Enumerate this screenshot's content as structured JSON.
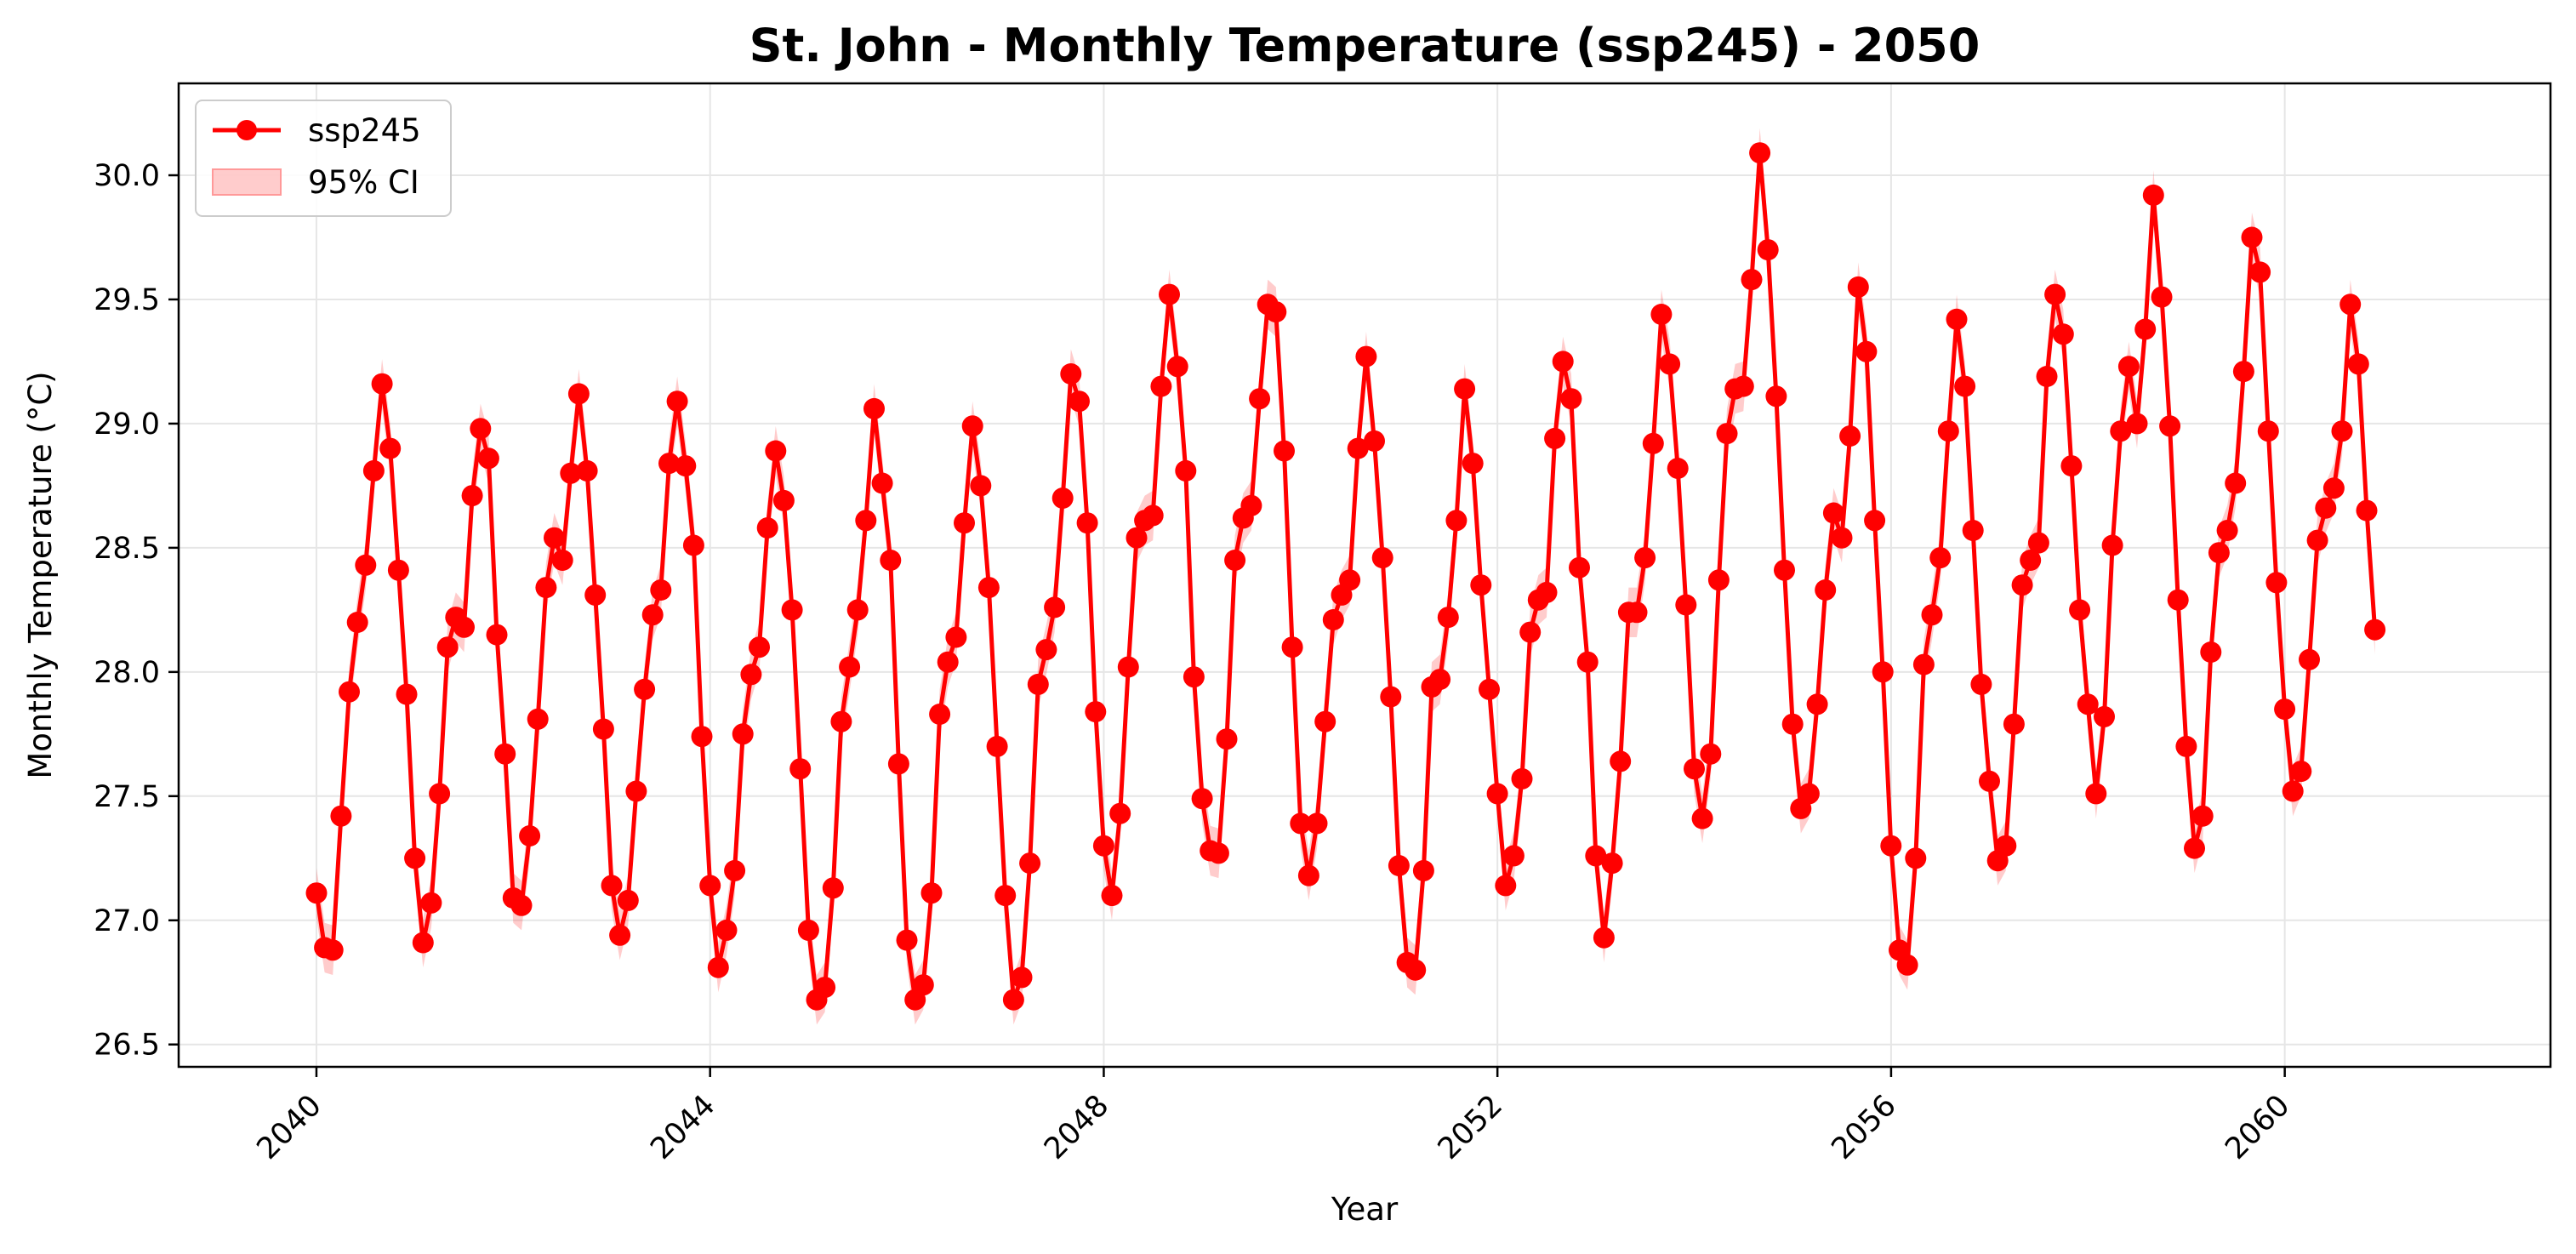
{
  "chart_data": {
    "type": "line",
    "title": "St. John - Monthly Temperature (ssp245) - 2050",
    "xlabel": "Year",
    "ylabel": "Monthly Temperature (°C)",
    "xlim": [
      2038.6,
      2062.7
    ],
    "ylim": [
      26.41,
      30.37
    ],
    "x_ticks": [
      2040,
      2044,
      2048,
      2052,
      2056,
      2060
    ],
    "x_tick_labels": [
      "2040",
      "2044",
      "2048",
      "2052",
      "2056",
      "2060"
    ],
    "y_ticks": [
      26.5,
      27.0,
      27.5,
      28.0,
      28.5,
      29.0,
      29.5,
      30.0
    ],
    "y_tick_labels": [
      "26.5",
      "27.0",
      "27.5",
      "28.0",
      "28.5",
      "29.0",
      "29.5",
      "30.0"
    ],
    "grid": true,
    "legend_position": "upper-left",
    "x_start_year": 2040,
    "x_step_years": 0.08333,
    "ci_half_width": 0.1,
    "series": [
      {
        "name": "ssp245",
        "color": "#ff0000",
        "marker": "circle",
        "values": [
          27.11,
          26.89,
          26.88,
          27.42,
          27.92,
          28.2,
          28.43,
          28.81,
          29.16,
          28.9,
          28.41,
          27.91,
          27.25,
          26.91,
          27.07,
          27.51,
          28.1,
          28.22,
          28.18,
          28.71,
          28.98,
          28.86,
          28.15,
          27.67,
          27.09,
          27.06,
          27.34,
          27.81,
          28.34,
          28.54,
          28.45,
          28.8,
          29.12,
          28.81,
          28.31,
          27.77,
          27.14,
          26.94,
          27.08,
          27.52,
          27.93,
          28.23,
          28.33,
          28.84,
          29.09,
          28.83,
          28.51,
          27.74,
          27.14,
          26.81,
          26.96,
          27.2,
          27.75,
          27.99,
          28.1,
          28.58,
          28.89,
          28.69,
          28.25,
          27.61,
          26.96,
          26.68,
          26.73,
          27.13,
          27.8,
          28.02,
          28.25,
          28.61,
          29.06,
          28.76,
          28.45,
          27.63,
          26.92,
          26.68,
          26.74,
          27.11,
          27.83,
          28.04,
          28.14,
          28.6,
          28.99,
          28.75,
          28.34,
          27.7,
          27.1,
          26.68,
          26.77,
          27.23,
          27.95,
          28.09,
          28.26,
          28.7,
          29.2,
          29.09,
          28.6,
          27.84,
          27.3,
          27.1,
          27.43,
          28.02,
          28.54,
          28.61,
          28.63,
          29.15,
          29.52,
          29.23,
          28.81,
          27.98,
          27.49,
          27.28,
          27.27,
          27.73,
          28.45,
          28.62,
          28.67,
          29.1,
          29.48,
          29.45,
          28.89,
          28.1,
          27.39,
          27.18,
          27.39,
          27.8,
          28.21,
          28.31,
          28.37,
          28.9,
          29.27,
          28.93,
          28.46,
          27.9,
          27.22,
          26.83,
          26.8,
          27.2,
          27.94,
          27.97,
          28.22,
          28.61,
          29.14,
          28.84,
          28.35,
          27.93,
          27.51,
          27.14,
          27.26,
          27.57,
          28.16,
          28.29,
          28.32,
          28.94,
          29.25,
          29.1,
          28.42,
          28.04,
          27.26,
          26.93,
          27.23,
          27.64,
          28.24,
          28.24,
          28.46,
          28.92,
          29.44,
          29.24,
          28.82,
          28.27,
          27.61,
          27.41,
          27.67,
          28.37,
          28.96,
          29.14,
          29.15,
          29.58,
          30.09,
          29.7,
          29.11,
          28.41,
          27.79,
          27.45,
          27.51,
          27.87,
          28.33,
          28.64,
          28.54,
          28.95,
          29.55,
          29.29,
          28.61,
          28.0,
          27.3,
          26.88,
          26.82,
          27.25,
          28.03,
          28.23,
          28.46,
          28.97,
          29.42,
          29.15,
          28.57,
          27.95,
          27.56,
          27.24,
          27.3,
          27.79,
          28.35,
          28.45,
          28.52,
          29.19,
          29.52,
          29.36,
          28.83,
          28.25,
          27.87,
          27.51,
          27.82,
          28.51,
          28.97,
          29.23,
          29.0,
          29.38,
          29.92,
          29.51,
          28.99,
          28.29,
          27.7,
          27.29,
          27.42,
          28.08,
          28.48,
          28.57,
          28.76,
          29.21,
          29.75,
          29.61,
          28.97,
          28.36,
          27.85,
          27.52,
          27.6,
          28.05,
          28.53,
          28.66,
          28.74,
          28.97,
          29.48,
          29.24,
          28.65,
          28.17
        ]
      }
    ],
    "legend": [
      {
        "label": "ssp245",
        "kind": "line-marker",
        "color": "#ff0000"
      },
      {
        "label": "95% CI",
        "kind": "band",
        "color": "#ff9999"
      }
    ]
  }
}
